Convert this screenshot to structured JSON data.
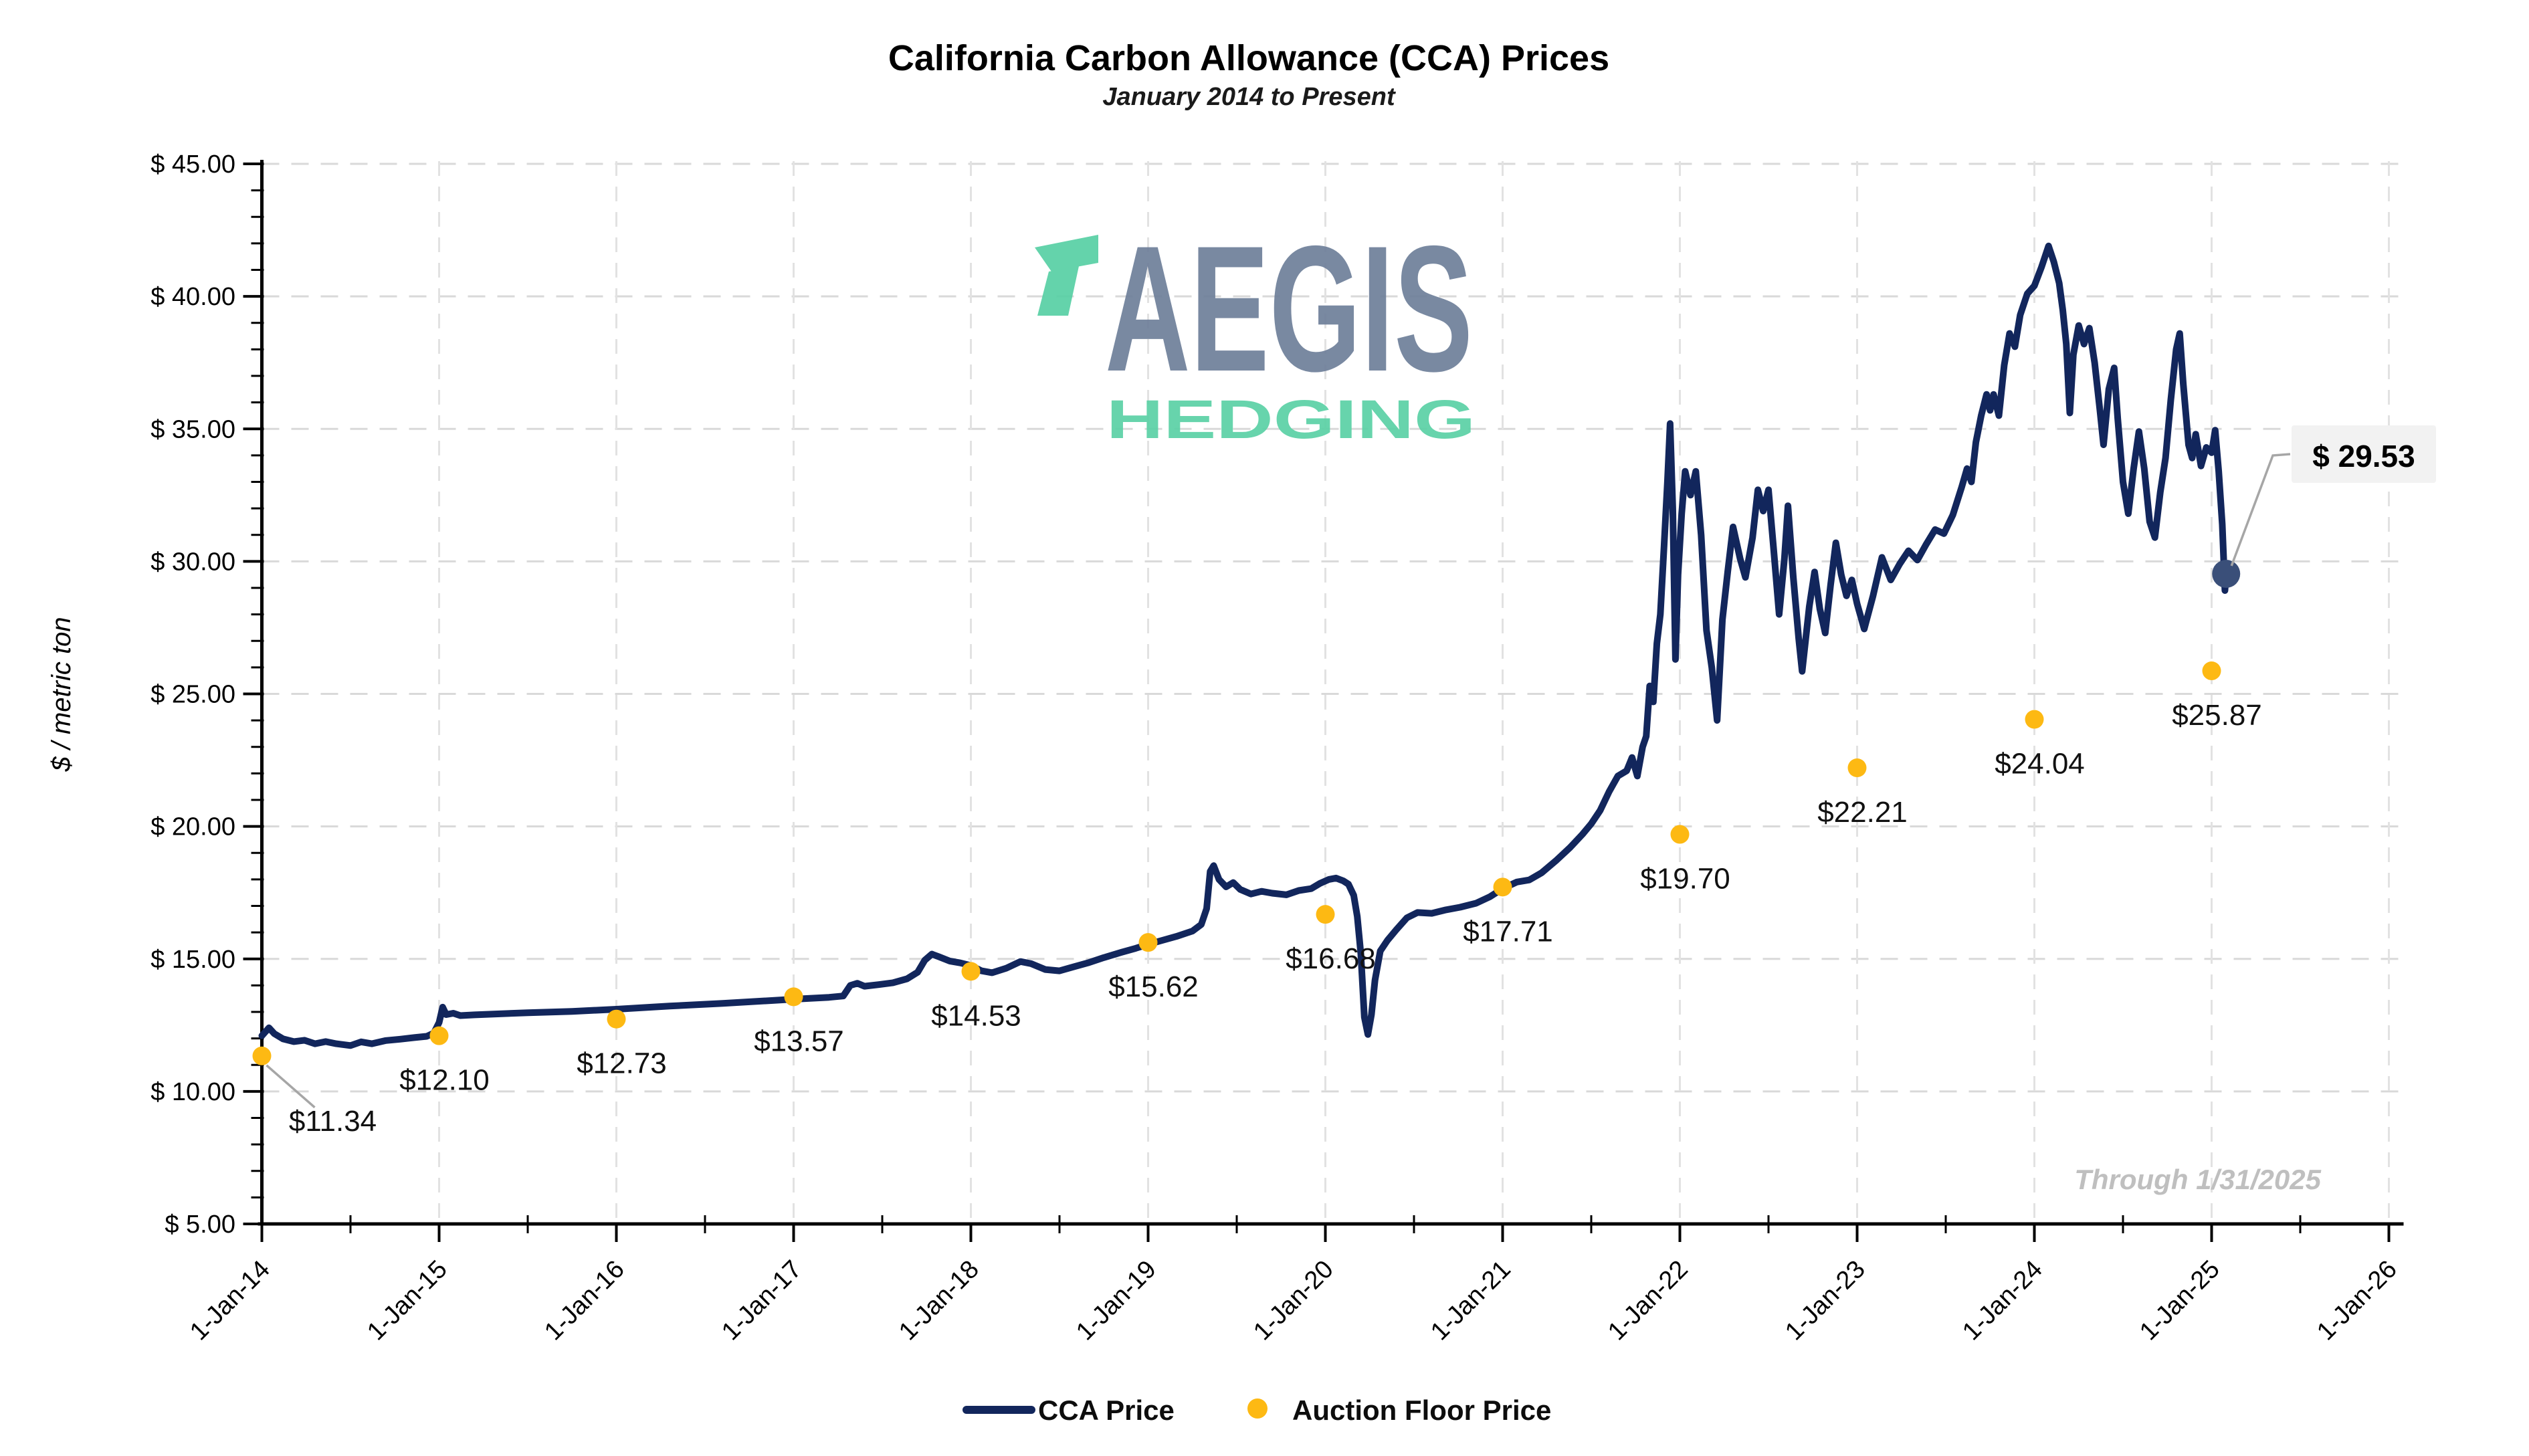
{
  "header": {
    "title": "California Carbon Allowance (CCA) Prices",
    "subtitle": "January 2014 to Present"
  },
  "watermark": {
    "brand": "AEGIS",
    "subbrand": "HEDGING"
  },
  "footnote": "Through 1/31/2025",
  "y_axis": {
    "title": "$ / metric ton",
    "tick_values": [
      45,
      40,
      35,
      30,
      25,
      20,
      15,
      10,
      5
    ],
    "tick_labels": [
      "$ 45.00",
      "$ 40.00",
      "$ 35.00",
      "$ 30.00",
      "$ 25.00",
      "$ 20.00",
      "$ 15.00",
      "$ 10.00",
      "$ 5.00"
    ]
  },
  "x_axis": {
    "tick_labels": [
      "1-Jan-14",
      "1-Jan-15",
      "1-Jan-16",
      "1-Jan-17",
      "1-Jan-18",
      "1-Jan-19",
      "1-Jan-20",
      "1-Jan-21",
      "1-Jan-22",
      "1-Jan-23",
      "1-Jan-24",
      "1-Jan-25",
      "1-Jan-26"
    ]
  },
  "legend": {
    "cca_label": "CCA Price",
    "auction_label": "Auction Floor Price"
  },
  "annotation": {
    "last_price_label": "$ 29.53"
  },
  "colors": {
    "cca_line": "#12265c",
    "auction_dot": "#fdb913",
    "grid_h": "#d9d9d9",
    "grid_v": "#e2e2e2",
    "axis": "#000000",
    "footnote": "#bfbfbf",
    "leader": "#a6a6a6",
    "annotation_bg": "#f2f2f2",
    "end_marker": "#3a4f79",
    "logo_slate": "#6e7f9a",
    "logo_mint": "#5bd1a5",
    "label_text": "#111111"
  },
  "chart_data": {
    "type": "line",
    "title": "California Carbon Allowance (CCA) Prices",
    "subtitle": "January 2014 to Present",
    "xlabel": "",
    "ylabel": "$ / metric ton",
    "ylim": [
      5,
      45
    ],
    "x_unit": "years since 1-Jan-2014",
    "grid": "dashed",
    "legend_position": "bottom",
    "through_date": "Through 1/31/2025",
    "series": [
      {
        "name": "CCA Price",
        "type": "line",
        "color": "#12265c",
        "points": [
          [
            0.0,
            12.1
          ],
          [
            0.04,
            12.4
          ],
          [
            0.07,
            12.18
          ],
          [
            0.12,
            11.98
          ],
          [
            0.18,
            11.88
          ],
          [
            0.24,
            11.93
          ],
          [
            0.3,
            11.8
          ],
          [
            0.36,
            11.88
          ],
          [
            0.42,
            11.8
          ],
          [
            0.5,
            11.73
          ],
          [
            0.56,
            11.87
          ],
          [
            0.62,
            11.8
          ],
          [
            0.7,
            11.92
          ],
          [
            0.78,
            11.97
          ],
          [
            0.86,
            12.03
          ],
          [
            0.93,
            12.08
          ],
          [
            0.97,
            12.2
          ],
          [
            1.0,
            12.6
          ],
          [
            1.02,
            13.18
          ],
          [
            1.04,
            12.9
          ],
          [
            1.08,
            12.95
          ],
          [
            1.12,
            12.86
          ],
          [
            1.2,
            12.89
          ],
          [
            1.5,
            12.97
          ],
          [
            1.75,
            13.02
          ],
          [
            2.0,
            13.1
          ],
          [
            2.3,
            13.22
          ],
          [
            2.6,
            13.32
          ],
          [
            3.0,
            13.48
          ],
          [
            3.2,
            13.55
          ],
          [
            3.28,
            13.6
          ],
          [
            3.32,
            14.0
          ],
          [
            3.36,
            14.08
          ],
          [
            3.4,
            13.97
          ],
          [
            3.48,
            14.03
          ],
          [
            3.56,
            14.1
          ],
          [
            3.64,
            14.25
          ],
          [
            3.7,
            14.5
          ],
          [
            3.74,
            14.95
          ],
          [
            3.78,
            15.18
          ],
          [
            3.82,
            15.08
          ],
          [
            3.88,
            14.92
          ],
          [
            3.94,
            14.85
          ],
          [
            4.0,
            14.75
          ],
          [
            4.06,
            14.55
          ],
          [
            4.12,
            14.48
          ],
          [
            4.2,
            14.65
          ],
          [
            4.28,
            14.9
          ],
          [
            4.34,
            14.82
          ],
          [
            4.42,
            14.6
          ],
          [
            4.5,
            14.55
          ],
          [
            4.58,
            14.7
          ],
          [
            4.66,
            14.85
          ],
          [
            4.75,
            15.05
          ],
          [
            4.85,
            15.25
          ],
          [
            4.93,
            15.4
          ],
          [
            5.0,
            15.55
          ],
          [
            5.08,
            15.7
          ],
          [
            5.16,
            15.85
          ],
          [
            5.25,
            16.05
          ],
          [
            5.3,
            16.3
          ],
          [
            5.33,
            16.9
          ],
          [
            5.35,
            18.3
          ],
          [
            5.37,
            18.52
          ],
          [
            5.4,
            18.0
          ],
          [
            5.44,
            17.72
          ],
          [
            5.48,
            17.88
          ],
          [
            5.52,
            17.62
          ],
          [
            5.58,
            17.45
          ],
          [
            5.64,
            17.55
          ],
          [
            5.7,
            17.48
          ],
          [
            5.78,
            17.42
          ],
          [
            5.85,
            17.58
          ],
          [
            5.92,
            17.65
          ],
          [
            5.97,
            17.85
          ],
          [
            6.02,
            18.0
          ],
          [
            6.06,
            18.05
          ],
          [
            6.1,
            17.95
          ],
          [
            6.13,
            17.82
          ],
          [
            6.16,
            17.4
          ],
          [
            6.18,
            16.6
          ],
          [
            6.2,
            15.2
          ],
          [
            6.22,
            12.8
          ],
          [
            6.24,
            12.15
          ],
          [
            6.26,
            12.9
          ],
          [
            6.28,
            14.2
          ],
          [
            6.31,
            15.3
          ],
          [
            6.35,
            15.7
          ],
          [
            6.4,
            16.1
          ],
          [
            6.46,
            16.55
          ],
          [
            6.52,
            16.75
          ],
          [
            6.6,
            16.72
          ],
          [
            6.68,
            16.85
          ],
          [
            6.76,
            16.95
          ],
          [
            6.85,
            17.1
          ],
          [
            6.93,
            17.35
          ],
          [
            7.0,
            17.65
          ],
          [
            7.08,
            17.9
          ],
          [
            7.15,
            17.98
          ],
          [
            7.22,
            18.25
          ],
          [
            7.3,
            18.7
          ],
          [
            7.38,
            19.2
          ],
          [
            7.45,
            19.7
          ],
          [
            7.5,
            20.1
          ],
          [
            7.55,
            20.6
          ],
          [
            7.6,
            21.3
          ],
          [
            7.65,
            21.9
          ],
          [
            7.7,
            22.1
          ],
          [
            7.73,
            22.6
          ],
          [
            7.76,
            21.9
          ],
          [
            7.79,
            23.0
          ],
          [
            7.81,
            23.4
          ],
          [
            7.83,
            25.3
          ],
          [
            7.85,
            24.7
          ],
          [
            7.87,
            26.9
          ],
          [
            7.89,
            28.0
          ],
          [
            7.91,
            30.5
          ],
          [
            7.93,
            33.0
          ],
          [
            7.945,
            35.2
          ],
          [
            7.96,
            32.0
          ],
          [
            7.975,
            26.3
          ],
          [
            7.99,
            29.5
          ],
          [
            8.01,
            31.8
          ],
          [
            8.03,
            33.4
          ],
          [
            8.06,
            32.5
          ],
          [
            8.09,
            33.4
          ],
          [
            8.12,
            31.0
          ],
          [
            8.15,
            27.4
          ],
          [
            8.18,
            26.0
          ],
          [
            8.21,
            24.0
          ],
          [
            8.24,
            27.8
          ],
          [
            8.27,
            29.6
          ],
          [
            8.3,
            31.3
          ],
          [
            8.34,
            30.1
          ],
          [
            8.37,
            29.4
          ],
          [
            8.41,
            30.9
          ],
          [
            8.44,
            32.7
          ],
          [
            8.47,
            31.9
          ],
          [
            8.5,
            32.7
          ],
          [
            8.53,
            30.4
          ],
          [
            8.56,
            28.0
          ],
          [
            8.59,
            30.1
          ],
          [
            8.61,
            32.1
          ],
          [
            8.64,
            29.4
          ],
          [
            8.67,
            27.1
          ],
          [
            8.69,
            25.85
          ],
          [
            8.73,
            28.3
          ],
          [
            8.76,
            29.6
          ],
          [
            8.79,
            28.2
          ],
          [
            8.82,
            27.3
          ],
          [
            8.85,
            29.1
          ],
          [
            8.88,
            30.7
          ],
          [
            8.91,
            29.5
          ],
          [
            8.94,
            28.7
          ],
          [
            8.97,
            29.3
          ],
          [
            9.0,
            28.4
          ],
          [
            9.04,
            27.45
          ],
          [
            9.09,
            28.7
          ],
          [
            9.14,
            30.15
          ],
          [
            9.19,
            29.3
          ],
          [
            9.24,
            29.9
          ],
          [
            9.29,
            30.4
          ],
          [
            9.34,
            30.05
          ],
          [
            9.39,
            30.65
          ],
          [
            9.44,
            31.2
          ],
          [
            9.49,
            31.05
          ],
          [
            9.54,
            31.75
          ],
          [
            9.59,
            32.8
          ],
          [
            9.62,
            33.5
          ],
          [
            9.645,
            33.0
          ],
          [
            9.67,
            34.5
          ],
          [
            9.7,
            35.5
          ],
          [
            9.73,
            36.3
          ],
          [
            9.75,
            35.7
          ],
          [
            9.77,
            36.3
          ],
          [
            9.8,
            35.5
          ],
          [
            9.83,
            37.4
          ],
          [
            9.86,
            38.6
          ],
          [
            9.89,
            38.1
          ],
          [
            9.92,
            39.3
          ],
          [
            9.96,
            40.1
          ],
          [
            10.0,
            40.4
          ],
          [
            10.04,
            41.1
          ],
          [
            10.08,
            41.9
          ],
          [
            10.11,
            41.3
          ],
          [
            10.14,
            40.5
          ],
          [
            10.16,
            39.5
          ],
          [
            10.18,
            38.2
          ],
          [
            10.2,
            35.6
          ],
          [
            10.22,
            37.8
          ],
          [
            10.25,
            38.9
          ],
          [
            10.28,
            38.2
          ],
          [
            10.31,
            38.8
          ],
          [
            10.34,
            37.5
          ],
          [
            10.37,
            35.7
          ],
          [
            10.39,
            34.4
          ],
          [
            10.42,
            36.5
          ],
          [
            10.45,
            37.3
          ],
          [
            10.47,
            35.4
          ],
          [
            10.5,
            33.0
          ],
          [
            10.53,
            31.8
          ],
          [
            10.56,
            33.5
          ],
          [
            10.59,
            34.9
          ],
          [
            10.62,
            33.5
          ],
          [
            10.65,
            31.5
          ],
          [
            10.68,
            30.9
          ],
          [
            10.71,
            32.6
          ],
          [
            10.74,
            33.9
          ],
          [
            10.77,
            36.1
          ],
          [
            10.8,
            38.0
          ],
          [
            10.82,
            38.6
          ],
          [
            10.84,
            36.7
          ],
          [
            10.87,
            34.4
          ],
          [
            10.89,
            33.9
          ],
          [
            10.91,
            34.8
          ],
          [
            10.94,
            33.6
          ],
          [
            10.97,
            34.3
          ],
          [
            11.0,
            34.1
          ],
          [
            11.02,
            34.95
          ],
          [
            11.04,
            33.4
          ],
          [
            11.06,
            31.4
          ],
          [
            11.075,
            28.9
          ],
          [
            11.082,
            29.53
          ]
        ]
      },
      {
        "name": "Auction Floor Price",
        "type": "scatter",
        "color": "#fdb913",
        "points": [
          {
            "x_label": "1-Jan-14",
            "t": 0,
            "value": 11.34,
            "label": "$11.34"
          },
          {
            "x_label": "1-Jan-15",
            "t": 1,
            "value": 12.1,
            "label": "$12.10"
          },
          {
            "x_label": "1-Jan-16",
            "t": 2,
            "value": 12.73,
            "label": "$12.73"
          },
          {
            "x_label": "1-Jan-17",
            "t": 3,
            "value": 13.57,
            "label": "$13.57"
          },
          {
            "x_label": "1-Jan-18",
            "t": 4,
            "value": 14.53,
            "label": "$14.53"
          },
          {
            "x_label": "1-Jan-19",
            "t": 5,
            "value": 15.62,
            "label": "$15.62"
          },
          {
            "x_label": "1-Jan-20",
            "t": 6,
            "value": 16.68,
            "label": "$16.68"
          },
          {
            "x_label": "1-Jan-21",
            "t": 7,
            "value": 17.71,
            "label": "$17.71"
          },
          {
            "x_label": "1-Jan-22",
            "t": 8,
            "value": 19.7,
            "label": "$19.70"
          },
          {
            "x_label": "1-Jan-23",
            "t": 9,
            "value": 22.21,
            "label": "$22.21"
          },
          {
            "x_label": "1-Jan-24",
            "t": 10,
            "value": 24.04,
            "label": "$24.04"
          },
          {
            "x_label": "1-Jan-25",
            "t": 11,
            "value": 25.87,
            "label": "$25.87"
          }
        ]
      }
    ],
    "last_point": {
      "t": 11.082,
      "value": 29.53,
      "label": "$ 29.53"
    }
  }
}
